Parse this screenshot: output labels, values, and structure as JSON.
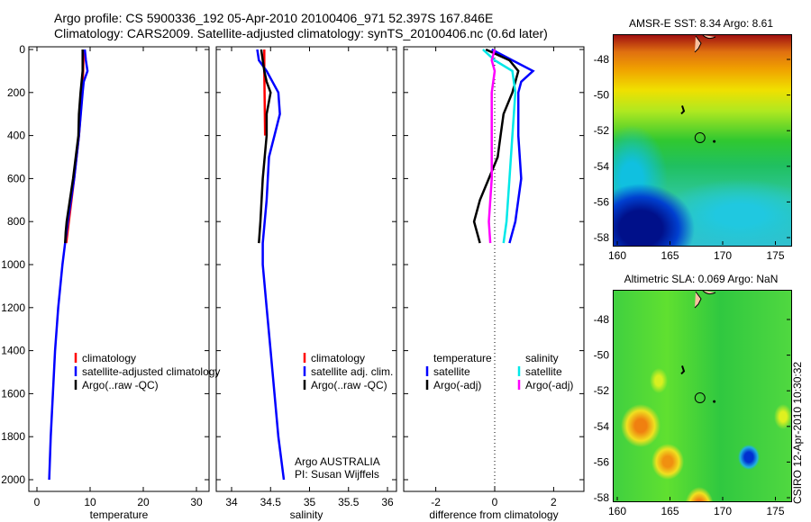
{
  "title": {
    "line1": "Argo profile: CS 5900336_192 05-Apr-2010 20100406_971 52.397S 167.846E",
    "line2": "Climatology: CARS2009. Satellite-adjusted climatology: synTS_20100406.nc (0.6d later)"
  },
  "credit": {
    "line1": "Argo AUSTRALIA",
    "line2": "PI: Susan Wijffels"
  },
  "timestamp": "CSIRO 12-Apr-2010 10:30:32",
  "colors": {
    "climatology": "#ff0000",
    "satellite": "#0000ff",
    "argo": "#000000",
    "sal_satellite": "#00e8e8",
    "sal_argo": "#ff00ff"
  },
  "chart_data": [
    {
      "type": "line",
      "xlabel": "temperature",
      "ylabel": "",
      "xlim": [
        -1.5,
        32
      ],
      "ylim": [
        2050,
        0
      ],
      "xticks": [
        0,
        10,
        20,
        30
      ],
      "yticks": [
        0,
        200,
        400,
        600,
        800,
        1000,
        1200,
        1400,
        1600,
        1800,
        2000
      ],
      "legend": [
        "climatology",
        "satellite-adjusted climatology",
        "Argo(..raw -QC)"
      ],
      "legend_position": "bottom-right",
      "series": [
        {
          "name": "climatology",
          "color": "#ff0000",
          "depth": [
            0,
            100,
            200,
            400,
            600,
            800,
            900
          ],
          "values": [
            8.8,
            8.7,
            8.5,
            7.9,
            7.0,
            6.0,
            5.5
          ]
        },
        {
          "name": "satellite-adjusted climatology",
          "color": "#0000ff",
          "depth": [
            0,
            50,
            100,
            150,
            200,
            400,
            600,
            800,
            1000,
            1200,
            1400,
            1600,
            1800,
            2000
          ],
          "values": [
            9.0,
            9.2,
            9.5,
            8.8,
            8.6,
            7.9,
            7.0,
            5.8,
            4.8,
            4.0,
            3.4,
            3.0,
            2.6,
            2.3
          ]
        },
        {
          "name": "Argo(..raw -QC)",
          "color": "#000000",
          "depth": [
            0,
            100,
            200,
            300,
            400,
            600,
            800,
            850,
            900
          ],
          "values": [
            8.6,
            8.6,
            8.2,
            7.9,
            7.8,
            6.8,
            5.6,
            5.4,
            5.3
          ]
        }
      ]
    },
    {
      "type": "line",
      "xlabel": "salinity",
      "ylabel": "",
      "xlim": [
        33.8,
        36.2
      ],
      "ylim": [
        2050,
        0
      ],
      "xticks": [
        34,
        34.5,
        35,
        35.5,
        36
      ],
      "legend": [
        "climatology",
        "satellite adj. clim.",
        "Argo(..raw -QC)"
      ],
      "legend_position": "bottom-right",
      "series": [
        {
          "name": "climatology",
          "color": "#ff0000",
          "depth": [
            0,
            100,
            400
          ],
          "values": [
            34.42,
            34.42,
            34.43
          ]
        },
        {
          "name": "satellite adj. clim.",
          "color": "#0000ff",
          "depth": [
            0,
            50,
            100,
            200,
            300,
            400,
            500,
            700,
            900,
            1000,
            1200,
            1400,
            1600,
            1800,
            2000
          ],
          "values": [
            34.33,
            34.35,
            34.45,
            34.6,
            34.62,
            34.55,
            34.48,
            34.45,
            34.4,
            34.4,
            34.45,
            34.5,
            34.55,
            34.6,
            34.67
          ]
        },
        {
          "name": "Argo(..raw -QC)",
          "color": "#000000",
          "depth": [
            0,
            50,
            100,
            150,
            200,
            300,
            400,
            600,
            800,
            900
          ],
          "values": [
            34.38,
            34.4,
            34.42,
            34.45,
            34.5,
            34.45,
            34.45,
            34.4,
            34.37,
            34.35
          ]
        }
      ]
    },
    {
      "type": "line",
      "xlabel": "difference from climatology",
      "ylabel": "",
      "xlim": [
        -3.1,
        3.1
      ],
      "ylim": [
        2050,
        0
      ],
      "xticks": [
        -2,
        0,
        2
      ],
      "legend_headers": [
        "temperature",
        "salinity"
      ],
      "legend": [
        "satellite",
        "Argo(-adj)",
        "satellite",
        "Argo(-adj)"
      ],
      "legend_position": "bottom",
      "series": [
        {
          "name": "temperature satellite",
          "color": "#0000ff",
          "depth": [
            0,
            50,
            100,
            150,
            200,
            400,
            600,
            800,
            900
          ],
          "values": [
            -0.1,
            0.6,
            1.3,
            0.9,
            0.8,
            0.8,
            0.9,
            0.7,
            0.5
          ]
        },
        {
          "name": "temperature Argo(-adj)",
          "color": "#000000",
          "depth": [
            0,
            50,
            100,
            200,
            300,
            400,
            500,
            600,
            700,
            800,
            900
          ],
          "values": [
            -0.3,
            0.5,
            0.8,
            0.6,
            0.3,
            0.2,
            0.1,
            -0.2,
            -0.5,
            -0.7,
            -0.5
          ]
        },
        {
          "name": "salinity satellite",
          "color": "#00e8e8",
          "depth": [
            0,
            50,
            100,
            200,
            400,
            600,
            800,
            900
          ],
          "values": [
            -0.4,
            0.0,
            0.6,
            0.7,
            0.6,
            0.5,
            0.4,
            0.3
          ]
        },
        {
          "name": "salinity Argo(-adj)",
          "color": "#ff00ff",
          "depth": [
            0,
            50,
            100,
            200,
            400,
            600,
            800,
            900
          ],
          "values": [
            0.0,
            -0.1,
            0.0,
            -0.1,
            -0.1,
            -0.1,
            -0.2,
            -0.15
          ]
        }
      ]
    },
    {
      "type": "heatmap",
      "title": "AMSR-E SST: 8.34 Argo: 8.61",
      "xticks": [
        160,
        165,
        170,
        175
      ],
      "yticks": [
        -48,
        -50,
        -52,
        -54,
        -56,
        -58
      ],
      "float_position": [
        167.846,
        -52.397
      ]
    },
    {
      "type": "heatmap",
      "title": "Altimetric SLA: 0.069 Argo: NaN",
      "xticks": [
        160,
        165,
        170,
        175
      ],
      "yticks": [
        -48,
        -50,
        -52,
        -54,
        -56,
        -58
      ],
      "float_position": [
        167.846,
        -52.397
      ]
    }
  ]
}
